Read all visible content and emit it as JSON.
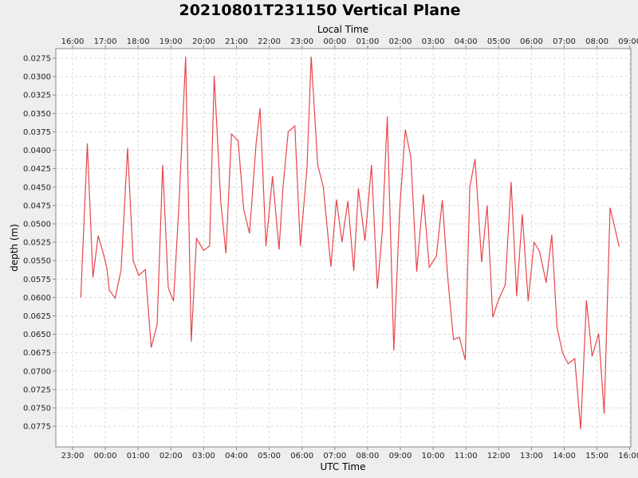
{
  "chart_data": {
    "type": "line",
    "title": "20210801T231150 Vertical Plane",
    "top_axis_label": "Local Time",
    "xlabel": "UTC Time",
    "ylabel": "depth (m)",
    "y_inverted": true,
    "xlim_hours": [
      -0.5,
      16.0
    ],
    "ylim": [
      0.0262,
      0.0803
    ],
    "grid": true,
    "bottom_ticks": [
      {
        "x": 0,
        "label": "23:00"
      },
      {
        "x": 1,
        "label": "00:00"
      },
      {
        "x": 2,
        "label": "01:00"
      },
      {
        "x": 3,
        "label": "02:00"
      },
      {
        "x": 4,
        "label": "03:00"
      },
      {
        "x": 5,
        "label": "04:00"
      },
      {
        "x": 6,
        "label": "05:00"
      },
      {
        "x": 7,
        "label": "06:00"
      },
      {
        "x": 8,
        "label": "07:00"
      },
      {
        "x": 9,
        "label": "08:00"
      },
      {
        "x": 10,
        "label": "09:00"
      },
      {
        "x": 11,
        "label": "10:00"
      },
      {
        "x": 12,
        "label": "11:00"
      },
      {
        "x": 13,
        "label": "12:00"
      },
      {
        "x": 14,
        "label": "13:00"
      },
      {
        "x": 15,
        "label": "14:00"
      },
      {
        "x": 16,
        "label": "15:00"
      },
      {
        "x": 17,
        "label": "16:00"
      }
    ],
    "top_ticks": [
      {
        "x": 0,
        "label": "16:00"
      },
      {
        "x": 1,
        "label": "17:00"
      },
      {
        "x": 2,
        "label": "18:00"
      },
      {
        "x": 3,
        "label": "19:00"
      },
      {
        "x": 4,
        "label": "20:00"
      },
      {
        "x": 5,
        "label": "21:00"
      },
      {
        "x": 6,
        "label": "22:00"
      },
      {
        "x": 7,
        "label": "23:00"
      },
      {
        "x": 8,
        "label": "00:00"
      },
      {
        "x": 9,
        "label": "01:00"
      },
      {
        "x": 10,
        "label": "02:00"
      },
      {
        "x": 11,
        "label": "03:00"
      },
      {
        "x": 12,
        "label": "04:00"
      },
      {
        "x": 13,
        "label": "05:00"
      },
      {
        "x": 14,
        "label": "06:00"
      },
      {
        "x": 15,
        "label": "07:00"
      },
      {
        "x": 16,
        "label": "08:00"
      },
      {
        "x": 17,
        "label": "09:00"
      }
    ],
    "y_ticks": [
      {
        "y": 0.0275,
        "label": "0.0275"
      },
      {
        "y": 0.03,
        "label": "0.0300"
      },
      {
        "y": 0.0325,
        "label": "0.0325"
      },
      {
        "y": 0.035,
        "label": "0.0350"
      },
      {
        "y": 0.0375,
        "label": "0.0375"
      },
      {
        "y": 0.04,
        "label": "0.0400"
      },
      {
        "y": 0.0425,
        "label": "0.0425"
      },
      {
        "y": 0.045,
        "label": "0.0450"
      },
      {
        "y": 0.0475,
        "label": "0.0475"
      },
      {
        "y": 0.05,
        "label": "0.0500"
      },
      {
        "y": 0.0525,
        "label": "0.0525"
      },
      {
        "y": 0.055,
        "label": "0.0550"
      },
      {
        "y": 0.0575,
        "label": "0.0575"
      },
      {
        "y": 0.06,
        "label": "0.0600"
      },
      {
        "y": 0.0625,
        "label": "0.0625"
      },
      {
        "y": 0.065,
        "label": "0.0650"
      },
      {
        "y": 0.0675,
        "label": "0.0675"
      },
      {
        "y": 0.07,
        "label": "0.0700"
      },
      {
        "y": 0.0725,
        "label": "0.0725"
      },
      {
        "y": 0.075,
        "label": "0.0750"
      },
      {
        "y": 0.0775,
        "label": "0.0775"
      }
    ],
    "series": [
      {
        "color": "#e8454a",
        "points": [
          [
            0.25,
            0.06
          ],
          [
            0.45,
            0.0391
          ],
          [
            0.62,
            0.0573
          ],
          [
            0.78,
            0.0516
          ],
          [
            0.95,
            0.0542
          ],
          [
            1.05,
            0.0561
          ],
          [
            1.12,
            0.059
          ],
          [
            1.3,
            0.0601
          ],
          [
            1.48,
            0.0563
          ],
          [
            1.68,
            0.0397
          ],
          [
            1.85,
            0.055
          ],
          [
            2.02,
            0.057
          ],
          [
            2.22,
            0.0562
          ],
          [
            2.4,
            0.0668
          ],
          [
            2.58,
            0.0637
          ],
          [
            2.75,
            0.042
          ],
          [
            2.92,
            0.0587
          ],
          [
            3.08,
            0.0605
          ],
          [
            3.25,
            0.047
          ],
          [
            3.45,
            0.0273
          ],
          [
            3.62,
            0.066
          ],
          [
            3.78,
            0.052
          ],
          [
            4.0,
            0.0536
          ],
          [
            4.18,
            0.053
          ],
          [
            4.32,
            0.0299
          ],
          [
            4.52,
            0.047
          ],
          [
            4.68,
            0.054
          ],
          [
            4.85,
            0.0378
          ],
          [
            5.05,
            0.0387
          ],
          [
            5.22,
            0.048
          ],
          [
            5.4,
            0.0513
          ],
          [
            5.6,
            0.039
          ],
          [
            5.72,
            0.0343
          ],
          [
            5.9,
            0.053
          ],
          [
            6.1,
            0.0435
          ],
          [
            6.3,
            0.0535
          ],
          [
            6.42,
            0.045
          ],
          [
            6.58,
            0.0375
          ],
          [
            6.78,
            0.0367
          ],
          [
            6.95,
            0.053
          ],
          [
            7.15,
            0.0425
          ],
          [
            7.28,
            0.0273
          ],
          [
            7.48,
            0.042
          ],
          [
            7.65,
            0.045
          ],
          [
            7.88,
            0.0558
          ],
          [
            8.05,
            0.0467
          ],
          [
            8.22,
            0.0525
          ],
          [
            8.4,
            0.0469
          ],
          [
            8.58,
            0.0564
          ],
          [
            8.72,
            0.0452
          ],
          [
            8.92,
            0.0523
          ],
          [
            9.12,
            0.042
          ],
          [
            9.3,
            0.0588
          ],
          [
            9.45,
            0.051
          ],
          [
            9.6,
            0.0354
          ],
          [
            9.8,
            0.0672
          ],
          [
            9.98,
            0.048
          ],
          [
            10.15,
            0.0372
          ],
          [
            10.32,
            0.041
          ],
          [
            10.5,
            0.0565
          ],
          [
            10.7,
            0.046
          ],
          [
            10.88,
            0.0559
          ],
          [
            11.1,
            0.0544
          ],
          [
            11.28,
            0.0468
          ],
          [
            11.45,
            0.0575
          ],
          [
            11.62,
            0.0657
          ],
          [
            11.8,
            0.0654
          ],
          [
            11.98,
            0.0685
          ],
          [
            12.12,
            0.045
          ],
          [
            12.28,
            0.0412
          ],
          [
            12.48,
            0.0552
          ],
          [
            12.65,
            0.0475
          ],
          [
            12.82,
            0.0627
          ],
          [
            12.98,
            0.0605
          ],
          [
            13.2,
            0.0583
          ],
          [
            13.38,
            0.0443
          ],
          [
            13.55,
            0.0598
          ],
          [
            13.72,
            0.0487
          ],
          [
            13.9,
            0.0605
          ],
          [
            14.08,
            0.0525
          ],
          [
            14.25,
            0.0538
          ],
          [
            14.45,
            0.058
          ],
          [
            14.62,
            0.0515
          ],
          [
            14.78,
            0.0641
          ],
          [
            14.95,
            0.0675
          ],
          [
            15.12,
            0.069
          ],
          [
            15.32,
            0.0683
          ],
          [
            15.5,
            0.0779
          ],
          [
            15.68,
            0.0604
          ],
          [
            15.85,
            0.068
          ],
          [
            16.05,
            0.0649
          ],
          [
            16.22,
            0.0758
          ],
          [
            16.4,
            0.0478
          ],
          [
            16.68,
            0.0531
          ]
        ]
      }
    ]
  }
}
